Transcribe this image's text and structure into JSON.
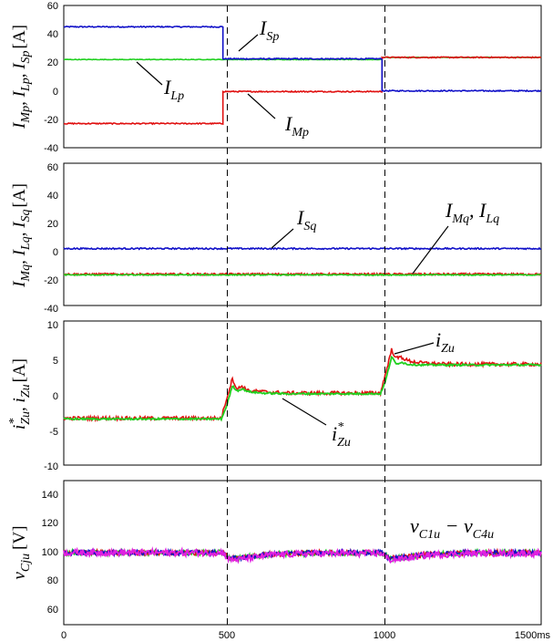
{
  "chart_data": [
    {
      "type": "line",
      "ylim": [
        -40,
        60
      ],
      "yticks": [
        "60",
        "40",
        "20",
        "0",
        "-20",
        "-40"
      ],
      "ylabel": {
        "p1": "I",
        "s1": "Mp",
        "p2": ", I",
        "s2": "Lp",
        "p3": ", I",
        "s3": "Sp",
        "unit": "[A]"
      },
      "annotations": [
        {
          "main": "I",
          "sub": "Sp"
        },
        {
          "main": "I",
          "sub": "Lp"
        },
        {
          "main": "I",
          "sub": "Mp"
        }
      ],
      "series": [
        {
          "color": "#1010c8",
          "x": [
            0,
            500,
            500,
            1000,
            1000,
            1500
          ],
          "y": [
            45,
            45,
            22.5,
            22.5,
            0,
            0
          ],
          "noise": 0.4
        },
        {
          "color": "#e01010",
          "x": [
            0,
            500,
            500,
            1000,
            1000,
            1500
          ],
          "y": [
            -23,
            -23,
            -0.5,
            -0.5,
            23.5,
            23.5
          ],
          "noise": 0.4
        },
        {
          "color": "#20d020",
          "x": [
            0,
            500,
            1000,
            1000,
            1500
          ],
          "y": [
            22,
            22,
            22,
            23.5,
            23.5
          ],
          "noise": 0.2
        }
      ]
    },
    {
      "type": "line",
      "ylim": [
        -40,
        60
      ],
      "yticks": [
        "60",
        "40",
        "20",
        "0",
        "-20",
        "-40"
      ],
      "ylabel": {
        "p1": "I",
        "s1": "Mq",
        "p2": ", I",
        "s2": "Lq",
        "p3": ", I",
        "s3": "Sq",
        "unit": "[A]"
      },
      "annotations": [
        {
          "main": "I",
          "sub": "Sq"
        },
        {
          "main": "I",
          "sub": "Mq",
          "main2": ", I",
          "sub2": "Lq"
        }
      ],
      "series": [
        {
          "color": "#1010c8",
          "x": [
            0,
            1500
          ],
          "y": [
            0,
            0
          ],
          "noise": 0.5
        },
        {
          "color": "#e01010",
          "x": [
            0,
            1500
          ],
          "y": [
            -18,
            -18
          ],
          "noise": 0.7
        },
        {
          "color": "#20d020",
          "x": [
            0,
            1500
          ],
          "y": [
            -18.5,
            -18.5
          ],
          "noise": 0.4
        }
      ]
    },
    {
      "type": "line",
      "ylim": [
        -10,
        10
      ],
      "yticks": [
        "10",
        "5",
        "0",
        "-5",
        "-10"
      ],
      "ylabel": {
        "p1": "i",
        "sup1": "*",
        "s1": "Zu",
        "p2": ", i",
        "s2": "Zu",
        "unit": "[A]"
      },
      "annotations": [
        {
          "main": "i",
          "sub": "Zu"
        },
        {
          "main": "i",
          "sup": "*",
          "sub": "Zu"
        }
      ],
      "series": [
        {
          "color": "#e01010",
          "x": [
            0,
            495,
            510,
            530,
            545,
            560,
            580,
            620,
            700,
            995,
            1010,
            1030,
            1045,
            1060,
            1080,
            1120,
            1200,
            1500
          ],
          "y": [
            -3.5,
            -3.5,
            -1,
            2,
            0.5,
            1,
            0.3,
            0.2,
            0,
            0,
            2.5,
            6,
            4.8,
            5,
            4.5,
            4.2,
            4,
            4
          ],
          "noise": 0.25
        },
        {
          "color": "#20d020",
          "x": [
            0,
            495,
            510,
            530,
            545,
            560,
            580,
            620,
            700,
            995,
            1010,
            1030,
            1045,
            1060,
            1080,
            1120,
            1200,
            1500
          ],
          "y": [
            -3.6,
            -3.6,
            -2,
            1,
            0.3,
            0.6,
            0.2,
            0,
            -0.1,
            -0.1,
            1.5,
            5,
            4,
            4.3,
            4,
            3.9,
            3.9,
            3.9
          ],
          "noise": 0.12
        }
      ]
    },
    {
      "type": "line",
      "ylim": [
        50,
        150
      ],
      "yticks": [
        "140",
        "120",
        "100",
        "80",
        "60"
      ],
      "ylabel": {
        "p1": "v",
        "s1": "Cju",
        "unit": "[V]"
      },
      "annotations": [
        {
          "main": "v",
          "sub": "C1u",
          "mid": " − v",
          "sub2": "C4u"
        }
      ],
      "series": [
        {
          "color": "#20d020",
          "x": [
            0,
            500,
            520,
            560,
            650,
            800,
            1000,
            1020,
            1060,
            1150,
            1300,
            1500
          ],
          "y": [
            100,
            100,
            96,
            96.5,
            99,
            100,
            100,
            96,
            96.5,
            99,
            100,
            100
          ],
          "noise": 1.8
        },
        {
          "color": "#e01010",
          "x": [
            0,
            500,
            520,
            560,
            650,
            800,
            1000,
            1020,
            1060,
            1150,
            1300,
            1500
          ],
          "y": [
            100,
            100,
            96,
            96.5,
            99,
            100,
            100,
            96,
            96.5,
            99,
            100,
            100
          ],
          "noise": 1.8
        },
        {
          "color": "#1010c8",
          "x": [
            0,
            500,
            520,
            560,
            650,
            800,
            1000,
            1020,
            1060,
            1150,
            1300,
            1500
          ],
          "y": [
            100,
            100,
            96,
            96.5,
            99,
            100,
            100,
            96,
            96.5,
            99,
            100,
            100
          ],
          "noise": 1.8
        },
        {
          "color": "#e020e0",
          "x": [
            0,
            500,
            520,
            560,
            650,
            800,
            1000,
            1020,
            1060,
            1150,
            1300,
            1500
          ],
          "y": [
            100,
            100,
            95,
            95.5,
            98.5,
            99.5,
            99.5,
            95,
            95.5,
            98.5,
            99.5,
            99.5
          ],
          "noise": 2.2
        }
      ]
    }
  ],
  "xaxis": {
    "range": [
      0,
      1500
    ],
    "ticks": [
      "0",
      "500",
      "1000",
      "1500ms"
    ],
    "dashed_at": [
      500,
      1000
    ]
  }
}
